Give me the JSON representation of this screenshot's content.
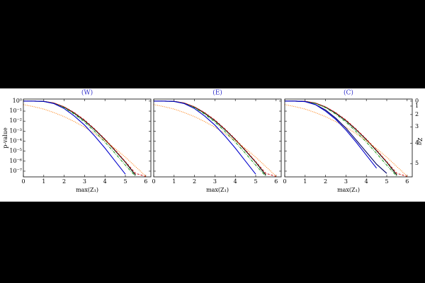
{
  "chart_data": [
    {
      "type": "line",
      "title": "(W)",
      "xlabel": "max(Z₁)",
      "ylabel": "p-value",
      "x": [
        0,
        0.5,
        1,
        1.5,
        2,
        2.5,
        3,
        3.5,
        4,
        4.5,
        5,
        5.5,
        6
      ],
      "xlim": [
        0,
        6.25
      ],
      "xticks": [
        0,
        1,
        2,
        3,
        4,
        5,
        6
      ],
      "yscale": "log",
      "ylim": [
        2.7e-08,
        1.6
      ],
      "yticks": [
        {
          "value": 1,
          "label": "10⁰"
        },
        {
          "value": 0.1,
          "label": "10⁻¹"
        },
        {
          "value": 0.01,
          "label": "10⁻²"
        },
        {
          "value": 0.001,
          "label": "10⁻³"
        },
        {
          "value": 0.0001,
          "label": "10⁻⁴"
        },
        {
          "value": 1e-05,
          "label": "10⁻⁵"
        },
        {
          "value": 1e-06,
          "label": "10⁻⁶"
        },
        {
          "value": 1e-07,
          "label": "10⁻⁷"
        }
      ],
      "series": [
        {
          "color": "#000000",
          "linestyle": "solid",
          "values": [
            1,
            1,
            0.93,
            0.63,
            0.25,
            0.063,
            0.011,
            0.0014,
            0.00014,
            1.1e-05,
            7.9e-07,
            4e-08,
            null
          ]
        },
        {
          "color": "#d62728",
          "linestyle": "dashed",
          "values": [
            1,
            1,
            0.95,
            0.66,
            0.27,
            0.07,
            0.013,
            0.0016,
            0.00016,
            1.3e-05,
            9e-07,
            6e-08,
            3e-08
          ]
        },
        {
          "color": "#2ca02c",
          "linestyle": "dashdot",
          "values": [
            1,
            1,
            0.9,
            0.58,
            0.22,
            0.05,
            0.008,
            0.0009,
            8e-05,
            6e-06,
            4e-07,
            3e-08,
            null
          ]
        },
        {
          "color": "#ff7f0e",
          "linestyle": "dotted",
          "values": [
            0.45,
            0.28,
            0.16,
            0.071,
            0.028,
            0.0089,
            0.0025,
            0.00056,
            0.00011,
            1.8e-05,
            2.5e-06,
            2.8e-07,
            3.2e-08
          ]
        },
        {
          "color": "#0000cc",
          "linestyle": "solid",
          "values": [
            1,
            1,
            0.93,
            0.56,
            0.18,
            0.032,
            0.004,
            0.00032,
            2e-05,
            1e-06,
            5e-08,
            null,
            null
          ]
        }
      ]
    },
    {
      "type": "line",
      "title": "(E)",
      "xlabel": "max(Z₁)",
      "x": [
        0,
        0.5,
        1,
        1.5,
        2,
        2.5,
        3,
        3.5,
        4,
        4.5,
        5,
        5.5,
        6
      ],
      "xlim": [
        0,
        6.25
      ],
      "xticks": [
        0,
        1,
        2,
        3,
        4,
        5,
        6
      ],
      "yscale": "log",
      "ylim": [
        2.7e-08,
        1.6
      ],
      "yticks": [
        1,
        0.1,
        0.01,
        0.001,
        0.0001,
        1e-05,
        1e-06,
        1e-07
      ],
      "series": [
        {
          "color": "#000000",
          "linestyle": "solid",
          "values": [
            1,
            1,
            0.93,
            0.63,
            0.25,
            0.063,
            0.011,
            0.0014,
            0.00014,
            1.1e-05,
            7.9e-07,
            4e-08,
            null
          ]
        },
        {
          "color": "#d62728",
          "linestyle": "dashed",
          "values": [
            1,
            1,
            0.95,
            0.66,
            0.27,
            0.07,
            0.013,
            0.0016,
            0.00016,
            1.3e-05,
            9e-07,
            6e-08,
            3e-08
          ]
        },
        {
          "color": "#2ca02c",
          "linestyle": "dashdot",
          "values": [
            1,
            1,
            0.9,
            0.58,
            0.22,
            0.05,
            0.008,
            0.0009,
            8e-05,
            6e-06,
            4e-07,
            3e-08,
            null
          ]
        },
        {
          "color": "#ff7f0e",
          "linestyle": "dotted",
          "values": [
            0.45,
            0.28,
            0.16,
            0.071,
            0.028,
            0.0089,
            0.0025,
            0.00056,
            0.00011,
            1.8e-05,
            2.5e-06,
            2.8e-07,
            3.2e-08
          ]
        },
        {
          "color": "#0000cc",
          "linestyle": "solid",
          "values": [
            1,
            1,
            0.93,
            0.56,
            0.18,
            0.032,
            0.004,
            0.00032,
            2e-05,
            1e-06,
            5e-08,
            null,
            null
          ]
        }
      ]
    },
    {
      "type": "line",
      "title": "(C)",
      "xlabel": "max(Z₁)",
      "y2label": "Zσ",
      "x": [
        0,
        0.5,
        1,
        1.5,
        2,
        2.5,
        3,
        3.5,
        4,
        4.5,
        5,
        5.5,
        6
      ],
      "xlim": [
        0,
        6.25
      ],
      "xticks": [
        0,
        1,
        2,
        3,
        4,
        5,
        6
      ],
      "yscale": "log",
      "ylim": [
        2.7e-08,
        1.6
      ],
      "yticks": [
        1,
        0.1,
        0.01,
        0.001,
        0.0001,
        1e-05,
        1e-06,
        1e-07
      ],
      "y2scale": "two-sided-sigma",
      "y2ticks": [
        0,
        1,
        2,
        3,
        4,
        5
      ],
      "series": [
        {
          "color": "#000000",
          "linestyle": "solid",
          "values": [
            1,
            1,
            0.93,
            0.63,
            0.25,
            0.063,
            0.011,
            0.0014,
            0.00014,
            1.1e-05,
            7.9e-07,
            4e-08,
            null
          ]
        },
        {
          "color": "#d62728",
          "linestyle": "dashed",
          "values": [
            1,
            1,
            0.95,
            0.66,
            0.27,
            0.07,
            0.013,
            0.0016,
            0.00016,
            1.3e-05,
            9e-07,
            6e-08,
            3e-08
          ]
        },
        {
          "color": "#2ca02c",
          "linestyle": "dashdot",
          "values": [
            1,
            1,
            0.9,
            0.58,
            0.22,
            0.05,
            0.008,
            0.0009,
            8e-05,
            6e-06,
            4e-07,
            3e-08,
            null
          ]
        },
        {
          "color": "#ff7f0e",
          "linestyle": "dotted",
          "values": [
            0.45,
            0.28,
            0.16,
            0.071,
            0.028,
            0.0089,
            0.0025,
            0.00056,
            0.00011,
            1.8e-05,
            2.5e-06,
            2.8e-07,
            3.2e-08
          ]
        },
        {
          "color": "#000066",
          "linestyle": "solid",
          "values": [
            1,
            1,
            0.89,
            0.45,
            0.13,
            0.02,
            0.002,
            0.00013,
            8e-06,
            5e-07,
            6e-08,
            null,
            null
          ]
        },
        {
          "color": "#0000cc",
          "linestyle": "solid",
          "values": [
            1,
            1,
            0.9,
            0.45,
            0.1,
            0.015,
            0.0013,
            8e-05,
            4e-06,
            2e-07,
            null,
            null,
            null
          ]
        }
      ]
    }
  ]
}
